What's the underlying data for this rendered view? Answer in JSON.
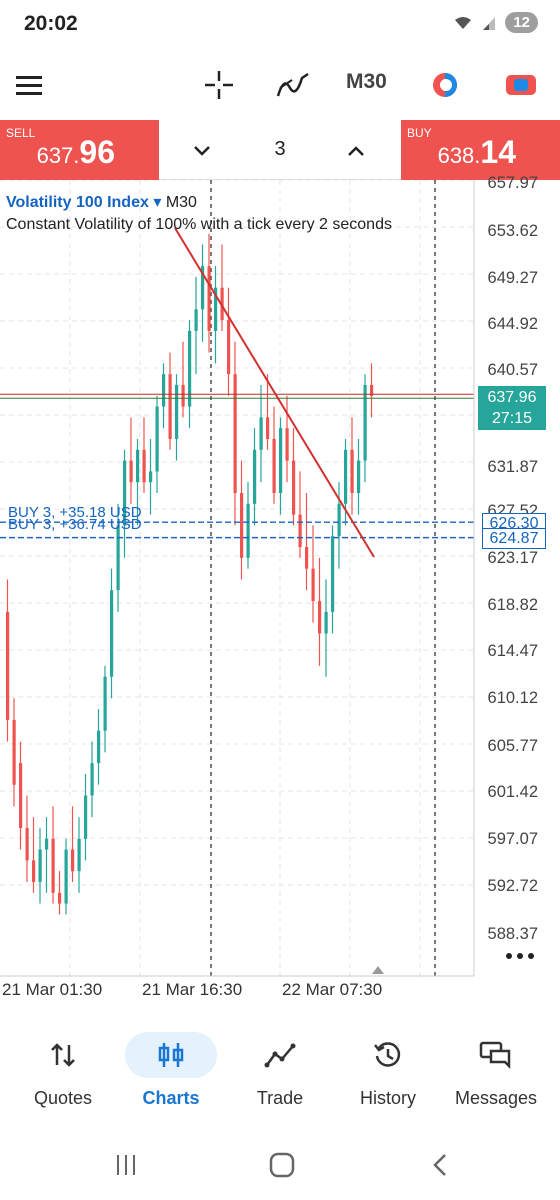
{
  "status_bar": {
    "time": "20:02",
    "battery": "12"
  },
  "toolbar": {
    "timeframe": "M30"
  },
  "trade": {
    "sell_label": "SELL",
    "sell_price_small": "637.",
    "sell_price_big": "96",
    "buy_label": "BUY",
    "buy_price_small": "638.",
    "buy_price_big": "14",
    "volume": "3"
  },
  "chart": {
    "symbol": "Volatility 100 Index",
    "dropdown_glyph": "▾",
    "timeframe": "M30",
    "description": "Constant Volatility of 100% with a tick every 2 seconds",
    "price_axis": [
      "657.97",
      "653.62",
      "649.27",
      "644.92",
      "640.57",
      "631.87",
      "627.52",
      "623.17",
      "618.82",
      "614.47",
      "610.12",
      "605.77",
      "601.42",
      "597.07",
      "592.72",
      "588.37"
    ],
    "current_price": "637.96",
    "countdown": "27:15",
    "orders": [
      {
        "label": "BUY 3, +35.18 USD",
        "price": "626.30"
      },
      {
        "label": "BUY 3, +36.74 USD",
        "price": "624.87"
      }
    ],
    "time_axis": [
      "21 Mar 01:30",
      "21 Mar 16:30",
      "22 Mar 07:30"
    ],
    "colors": {
      "up": "#26a69a",
      "down": "#ef5350",
      "trendline": "#d32f2f",
      "order_line": "#1e63c7"
    }
  },
  "nav": {
    "items": [
      {
        "label": "Quotes"
      },
      {
        "label": "Charts"
      },
      {
        "label": "Trade"
      },
      {
        "label": "History"
      },
      {
        "label": "Messages"
      }
    ]
  }
}
